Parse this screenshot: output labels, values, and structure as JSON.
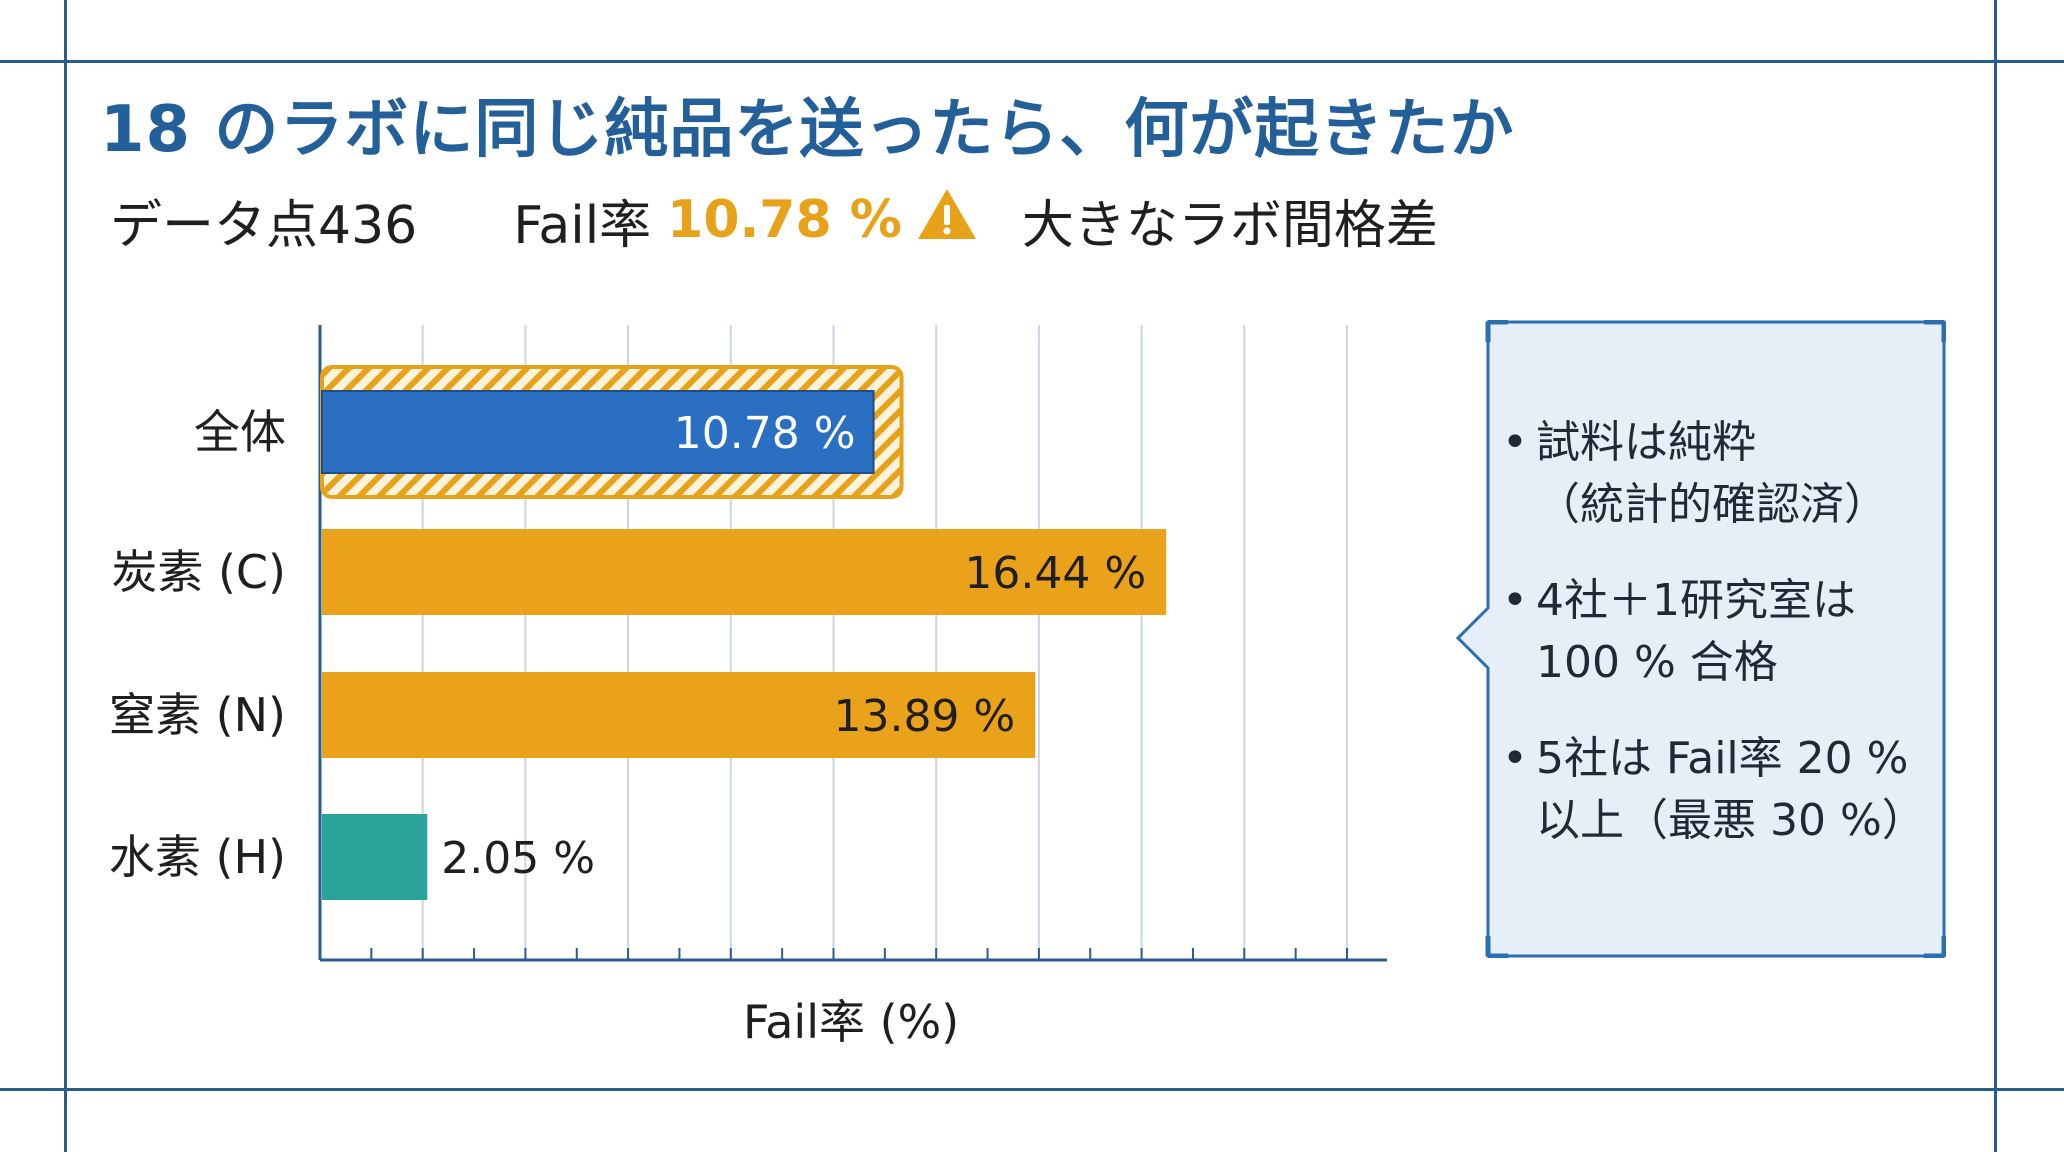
{
  "title": "18 のラボに同じ純品を送ったら、何が起きたか",
  "subtitle": {
    "data_points": "データ点436",
    "fail_rate_label": "Fail率",
    "fail_rate_value": "10.78 %",
    "warning_icon": "warning-icon",
    "note": "大きなラボ間格差"
  },
  "colors": {
    "title": "#23609a",
    "frame": "#2a5d8f",
    "highlight": "#e8a21a",
    "overall_bar": "#2a6fc2",
    "element_bar": "#eaa21a",
    "hydrogen_bar": "#2aa39a",
    "callout_bg": "#e6eef7",
    "callout_border": "#2a6fb0"
  },
  "chart_data": {
    "type": "bar",
    "orientation": "horizontal",
    "categories": [
      "全体",
      "炭素 (C)",
      "窒素 (N)",
      "水素 (H)"
    ],
    "values": [
      10.78,
      16.44,
      13.89,
      2.05
    ],
    "value_labels": [
      "10.78 %",
      "16.44 %",
      "13.89 %",
      "2.05 %"
    ],
    "highlighted_category": "全体",
    "xlabel": "Fail率 (%)",
    "ylabel": "",
    "xlim": [
      0,
      20
    ],
    "grid": true
  },
  "callout": {
    "items": [
      "試料は純粋\n（統計的確認済）",
      "4社＋1研究室は\n100 % 合格",
      "5社は Fail率 20 %\n以上（最悪 30 %）"
    ]
  }
}
